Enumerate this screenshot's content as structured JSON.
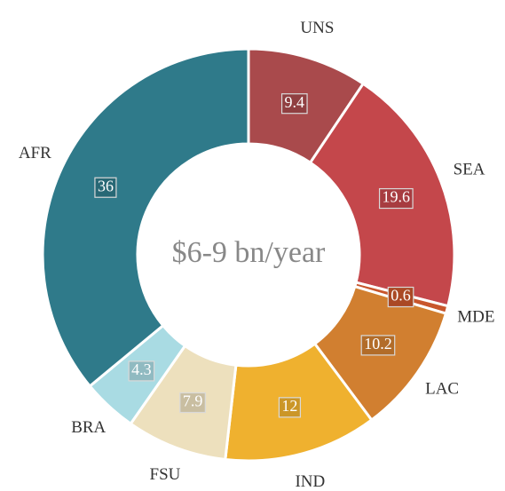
{
  "chart_data": {
    "type": "pie",
    "donut": true,
    "center_text": "$6-9 bn/year",
    "categories": [
      "UNS",
      "SEA",
      "MDE",
      "LAC",
      "IND",
      "FSU",
      "BRA",
      "AFR"
    ],
    "values": [
      9.4,
      19.6,
      0.6,
      10.2,
      12,
      7.9,
      4.3,
      36
    ],
    "colors": [
      "#a94a4c",
      "#c4474b",
      "#c8562c",
      "#d17f30",
      "#efb12f",
      "#ede0bd",
      "#a9dbe3",
      "#2f7a8a"
    ]
  }
}
